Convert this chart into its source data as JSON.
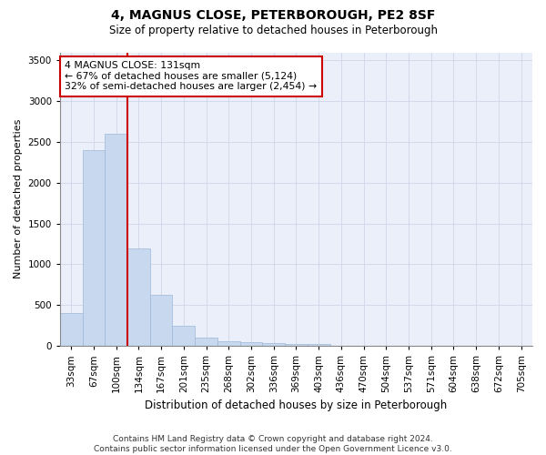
{
  "title": "4, MAGNUS CLOSE, PETERBOROUGH, PE2 8SF",
  "subtitle": "Size of property relative to detached houses in Peterborough",
  "xlabel": "Distribution of detached houses by size in Peterborough",
  "ylabel": "Number of detached properties",
  "categories": [
    "33sqm",
    "67sqm",
    "100sqm",
    "134sqm",
    "167sqm",
    "201sqm",
    "235sqm",
    "268sqm",
    "302sqm",
    "336sqm",
    "369sqm",
    "403sqm",
    "436sqm",
    "470sqm",
    "504sqm",
    "537sqm",
    "571sqm",
    "604sqm",
    "638sqm",
    "672sqm",
    "705sqm"
  ],
  "values": [
    400,
    2400,
    2600,
    1200,
    620,
    250,
    100,
    60,
    50,
    30,
    20,
    20,
    3,
    2,
    1,
    1,
    0,
    0,
    0,
    0,
    0
  ],
  "bar_color": "#c8d9ef",
  "bar_edge_color": "#9bb8d8",
  "highlight_index": 3,
  "highlight_line_color": "#cc0000",
  "annotation_text": "4 MAGNUS CLOSE: 131sqm\n← 67% of detached houses are smaller (5,124)\n32% of semi-detached houses are larger (2,454) →",
  "annotation_box_color": "#ffffff",
  "annotation_box_edge": "#cc0000",
  "ylim": [
    0,
    3600
  ],
  "yticks": [
    0,
    500,
    1000,
    1500,
    2000,
    2500,
    3000,
    3500
  ],
  "grid_color": "#cdd5e8",
  "footer": "Contains HM Land Registry data © Crown copyright and database right 2024.\nContains public sector information licensed under the Open Government Licence v3.0.",
  "bg_color": "#ffffff",
  "plot_bg_color": "#eaeff9",
  "title_fontsize": 10,
  "subtitle_fontsize": 8.5,
  "ylabel_fontsize": 8,
  "xlabel_fontsize": 8.5,
  "tick_fontsize": 7.5,
  "footer_fontsize": 6.5,
  "annotation_fontsize": 7.8
}
